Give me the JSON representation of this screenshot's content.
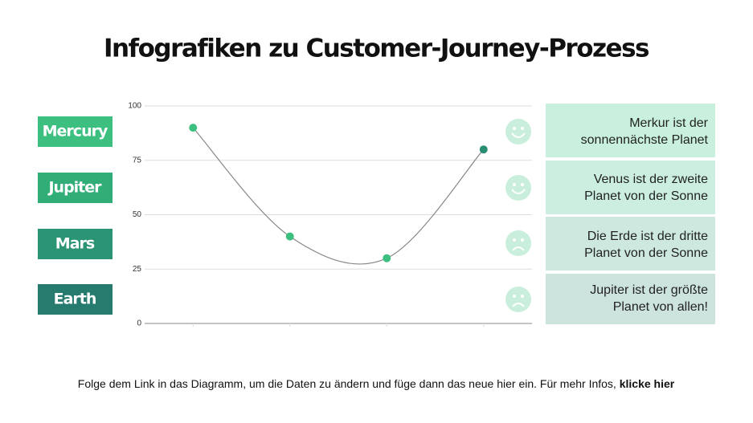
{
  "title": "Infografiken zu Customer-Journey-Prozess",
  "labels": [
    "Mercury",
    "Jupiter",
    "Mars",
    "Earth"
  ],
  "notes": [
    [
      "Merkur ist der",
      "sonnennächste Planet"
    ],
    [
      "Venus ist der zweite",
      "Planet von der Sonne"
    ],
    [
      "Die Erde ist der dritte",
      "Planet von der Sonne"
    ],
    [
      "Jupiter ist der größte",
      "Planet von allen!"
    ]
  ],
  "footer": {
    "text": "Folge dem Link in das Diagramm, um die Daten zu ändern und füge dann das neue hier ein. Für mehr Infos, ",
    "link": "klicke hier"
  },
  "chart_data": {
    "type": "line",
    "categories": [
      null,
      null,
      null,
      null
    ],
    "series": [
      {
        "color": "#888888",
        "marker_colors": [
          "#3dbf80",
          "#3dbf80",
          "#3dbf80",
          "#2a8e73"
        ],
        "values": [
          90,
          40,
          30,
          80
        ]
      }
    ],
    "ylim": [
      0,
      100
    ],
    "yticks": [
      0,
      25,
      50,
      75,
      100
    ],
    "grid": true
  }
}
